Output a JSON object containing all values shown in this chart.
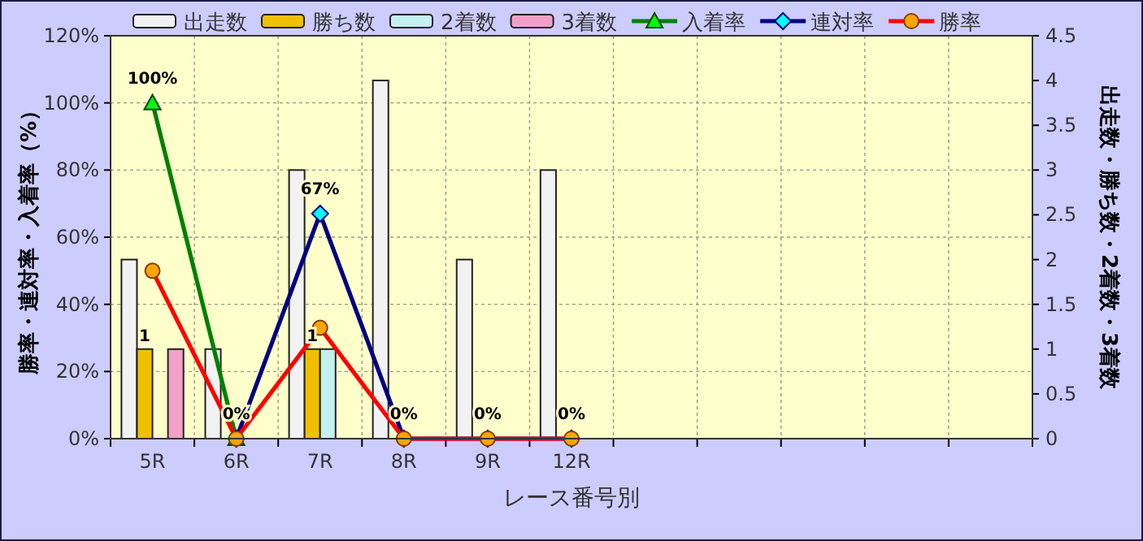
{
  "chart_data": {
    "type": "bar",
    "xlabel": "レース番号別",
    "ylabel": "勝率・連対率・入着率（%）",
    "y2label": "出走数・勝ち数・2着数・3着数",
    "categories": [
      "5R",
      "6R",
      "7R",
      "8R",
      "9R",
      "12R",
      null,
      null,
      null,
      null,
      null
    ],
    "ylim": [
      0,
      120
    ],
    "yticks": [
      {
        "value": 0,
        "label": "0%"
      },
      {
        "value": 20,
        "label": "20%"
      },
      {
        "value": 40,
        "label": "40%"
      },
      {
        "value": 60,
        "label": "60%"
      },
      {
        "value": 80,
        "label": "80%"
      },
      {
        "value": 100,
        "label": "100%"
      },
      {
        "value": 120,
        "label": "120%"
      }
    ],
    "y2lim": [
      0,
      4.5
    ],
    "y2ticks": [
      0,
      0.5,
      1,
      1.5,
      2,
      2.5,
      3,
      3.5,
      4,
      4.5
    ],
    "grid": true,
    "legend": "top",
    "series": [
      {
        "name": "出走数",
        "axis": "y2",
        "color": "#f2f2f2",
        "values": [
          2,
          1,
          3,
          4,
          2,
          3,
          null,
          null,
          null,
          null,
          null
        ]
      },
      {
        "name": "勝ち数",
        "axis": "y2",
        "color": "#f0c000",
        "values": [
          1,
          0,
          1,
          0,
          0,
          0,
          null,
          null,
          null,
          null,
          null
        ],
        "value_labels": [
          "1",
          null,
          "1",
          null,
          null,
          null,
          null,
          null,
          null,
          null,
          null
        ]
      },
      {
        "name": "2着数",
        "axis": "y2",
        "color": "#c4f0f0",
        "values": [
          0,
          0,
          1,
          0,
          0,
          0,
          null,
          null,
          null,
          null,
          null
        ]
      },
      {
        "name": "3着数",
        "axis": "y2",
        "color": "#f2a0c8",
        "values": [
          1,
          0,
          0,
          0,
          0,
          0,
          null,
          null,
          null,
          null,
          null
        ]
      },
      {
        "name": "入着率",
        "type": "line",
        "color": "#008000",
        "marker": "triangle",
        "values": [
          100,
          0,
          null,
          null,
          null,
          null,
          null,
          null,
          null,
          null,
          null
        ],
        "value_labels": [
          "100%",
          null,
          null,
          null,
          null,
          null,
          null,
          null,
          null,
          null,
          null
        ]
      },
      {
        "name": "連対率",
        "type": "line",
        "color": "#000080",
        "marker": "diamond",
        "values": [
          null,
          0,
          67,
          0,
          0,
          0,
          null,
          null,
          null,
          null,
          null
        ],
        "value_labels": [
          null,
          null,
          "67%",
          null,
          null,
          null,
          null,
          null,
          null,
          null,
          null
        ]
      },
      {
        "name": "勝率",
        "type": "line",
        "color": "#ff0000",
        "marker": "circle",
        "values": [
          50,
          0,
          33,
          0,
          0,
          0,
          null,
          null,
          null,
          null,
          null
        ],
        "value_labels": [
          null,
          "0%",
          null,
          "0%",
          "0%",
          "0%",
          null,
          null,
          null,
          null,
          null
        ]
      }
    ]
  }
}
